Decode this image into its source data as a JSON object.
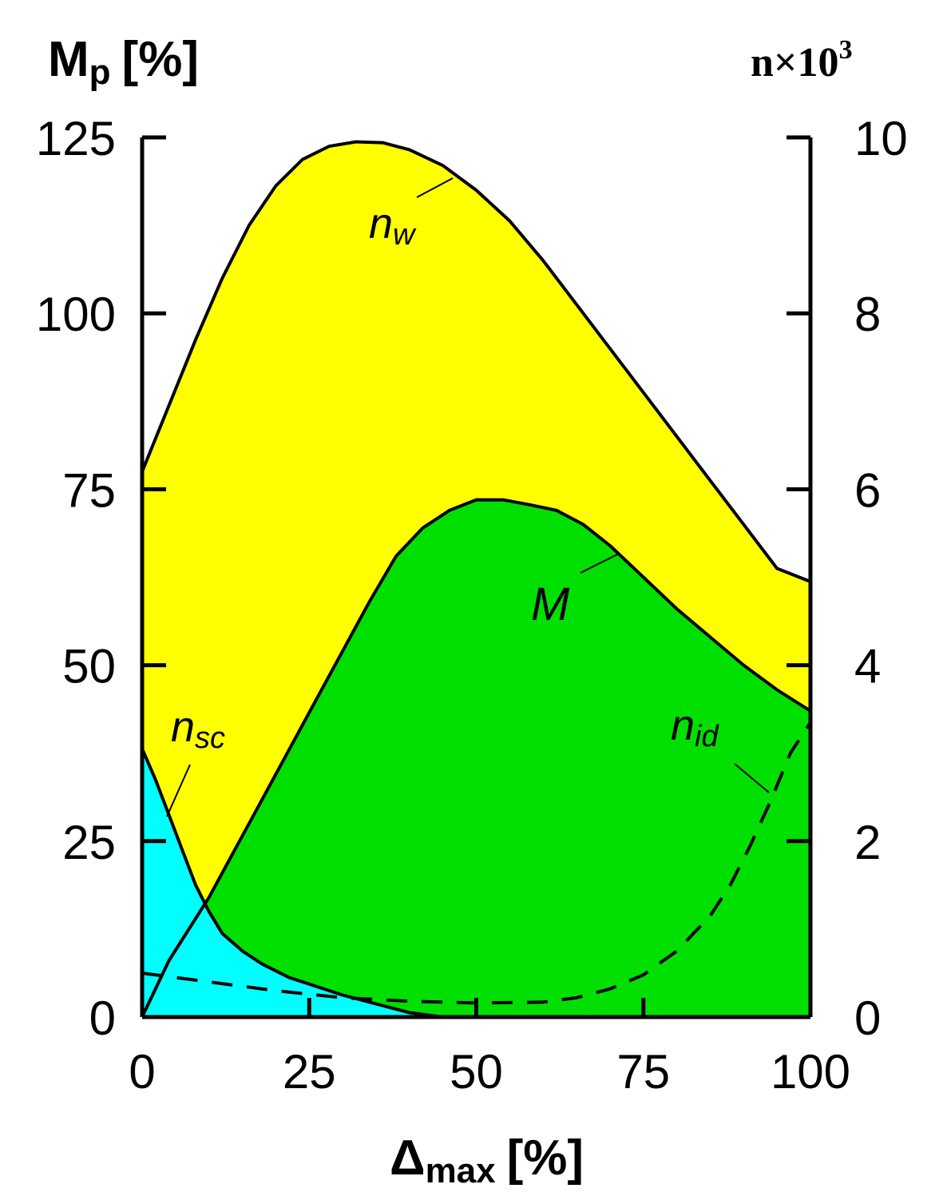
{
  "chart_data": {
    "type": "area",
    "y_left_label": {
      "main": "M",
      "sub": "p",
      "unit": "[%]"
    },
    "y_right_label": {
      "base": "n×10",
      "sup": "3"
    },
    "x_label": {
      "main": "Δ",
      "sub": "max",
      "unit": "[%]"
    },
    "xlim": [
      0,
      100
    ],
    "ylim": [
      0,
      125
    ],
    "y2lim": [
      0,
      10
    ],
    "x_ticks": [
      "0",
      "25",
      "50",
      "75",
      "100"
    ],
    "y_ticks": [
      "0",
      "25",
      "50",
      "75",
      "100",
      "125"
    ],
    "y2_ticks": [
      "0",
      "2",
      "4",
      "6",
      "8",
      "10"
    ],
    "grid": false,
    "colors": {
      "nw_fill": "#ffff00",
      "M_fill": "#00e000",
      "nsc_fill": "#00ffff",
      "stroke": "#000000"
    },
    "series": [
      {
        "name": "nw",
        "label_main": "n",
        "label_sub": "w",
        "axis": "right",
        "style": "solid",
        "x": [
          0,
          4,
          8,
          12,
          16,
          20,
          24,
          28,
          32,
          36,
          40,
          45,
          50,
          55,
          60,
          65,
          70,
          75,
          80,
          85,
          90,
          95,
          100
        ],
        "y": [
          6.2,
          6.95,
          7.7,
          8.4,
          9.0,
          9.45,
          9.75,
          9.9,
          9.95,
          9.94,
          9.86,
          9.68,
          9.4,
          9.05,
          8.6,
          8.1,
          7.6,
          7.1,
          6.6,
          6.1,
          5.6,
          5.1,
          4.95
        ]
      },
      {
        "name": "M",
        "label_main": "M",
        "axis": "left",
        "style": "solid",
        "x": [
          0,
          4,
          8,
          10,
          14,
          18,
          22,
          26,
          30,
          34,
          38,
          42,
          46,
          50,
          54,
          58,
          62,
          66,
          70,
          75,
          80,
          85,
          90,
          95,
          100
        ],
        "y": [
          0,
          8,
          14,
          17,
          24,
          31,
          38,
          45,
          52,
          59,
          65.5,
          69.5,
          72,
          73.5,
          73.5,
          72.8,
          72,
          70,
          67,
          62.5,
          58,
          54,
          50,
          46.5,
          43.5
        ]
      },
      {
        "name": "nsc",
        "label_main": "n",
        "label_sub": "sc",
        "axis": "right",
        "style": "solid",
        "x": [
          0,
          2,
          4,
          6,
          8,
          10,
          12,
          15,
          18,
          22,
          26,
          30,
          35,
          40,
          45
        ],
        "y": [
          3.05,
          2.7,
          2.3,
          1.9,
          1.5,
          1.2,
          0.95,
          0.75,
          0.6,
          0.45,
          0.35,
          0.25,
          0.15,
          0.05,
          0.0
        ]
      },
      {
        "name": "nid",
        "label_main": "n",
        "label_sub": "id",
        "axis": "right",
        "style": "dashed",
        "x": [
          0,
          5,
          10,
          15,
          20,
          25,
          30,
          35,
          40,
          50,
          60,
          65,
          70,
          75,
          80,
          85,
          88,
          91,
          94,
          97,
          100
        ],
        "y": [
          0.5,
          0.45,
          0.4,
          0.35,
          0.3,
          0.26,
          0.22,
          0.2,
          0.18,
          0.16,
          0.17,
          0.22,
          0.32,
          0.48,
          0.75,
          1.15,
          1.5,
          1.95,
          2.45,
          3.0,
          3.35
        ]
      }
    ]
  }
}
